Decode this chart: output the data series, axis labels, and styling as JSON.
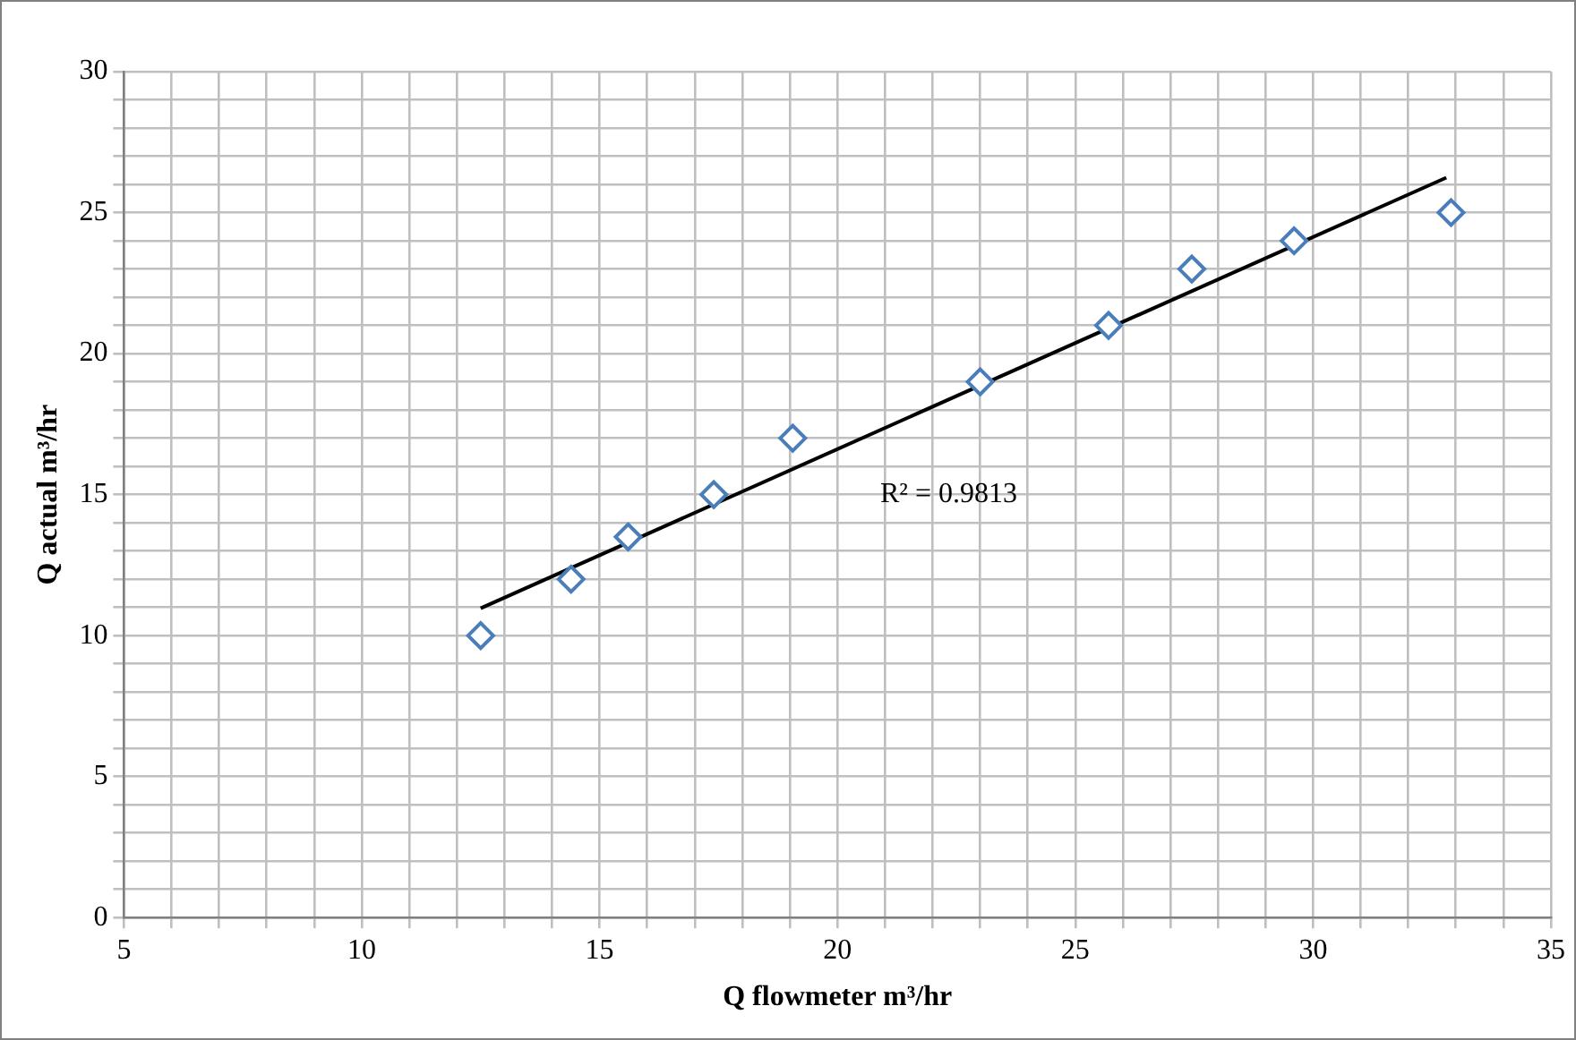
{
  "chart_data": {
    "type": "scatter",
    "xlabel": "Q flowmeter m³/hr",
    "ylabel": "Q actual m³/hr",
    "x": [
      12.5,
      14.4,
      15.6,
      17.4,
      19.06,
      23.0,
      25.7,
      27.45,
      29.6,
      32.9
    ],
    "series": [
      {
        "color": "#4a7ebb",
        "marker": "diamond",
        "values": [
          10,
          12,
          13.5,
          15,
          17,
          19,
          21,
          23,
          24,
          25
        ]
      },
      {
        "type": "line",
        "color": "#000000",
        "marker": "none",
        "x": [
          12.5,
          32.8
        ],
        "values": [
          10.97,
          26.24
        ]
      }
    ],
    "annotations": [
      "R² = 0.9813"
    ],
    "xlim": [
      5,
      35
    ],
    "ylim": [
      0,
      30
    ],
    "xticks": [
      5,
      {
        "value": 6,
        "label": null
      },
      {
        "value": 7,
        "label": null
      },
      {
        "value": 8,
        "label": null
      },
      {
        "value": 9,
        "label": null
      },
      10,
      {
        "value": 11,
        "label": null
      },
      {
        "value": 12,
        "label": null
      },
      {
        "value": 13,
        "label": null
      },
      {
        "value": 14,
        "label": null
      },
      15,
      {
        "value": 16,
        "label": null
      },
      {
        "value": 17,
        "label": null
      },
      {
        "value": 18,
        "label": null
      },
      {
        "value": 19,
        "label": null
      },
      20,
      {
        "value": 21,
        "label": null
      },
      {
        "value": 22,
        "label": null
      },
      {
        "value": 23,
        "label": null
      },
      {
        "value": 24,
        "label": null
      },
      25,
      {
        "value": 26,
        "label": null
      },
      {
        "value": 27,
        "label": null
      },
      {
        "value": 28,
        "label": null
      },
      {
        "value": 29,
        "label": null
      },
      30,
      {
        "value": 31,
        "label": null
      },
      {
        "value": 32,
        "label": null
      },
      {
        "value": 33,
        "label": null
      },
      {
        "value": 34,
        "label": null
      },
      35
    ],
    "yticks": [
      0,
      {
        "value": 1,
        "label": null
      },
      {
        "value": 2,
        "label": null
      },
      {
        "value": 3,
        "label": null
      },
      {
        "value": 4,
        "label": null
      },
      5,
      {
        "value": 6,
        "label": null
      },
      {
        "value": 7,
        "label": null
      },
      {
        "value": 8,
        "label": null
      },
      {
        "value": 9,
        "label": null
      },
      10,
      {
        "value": 11,
        "label": null
      },
      {
        "value": 12,
        "label": null
      },
      {
        "value": 13,
        "label": null
      },
      {
        "value": 14,
        "label": null
      },
      15,
      {
        "value": 16,
        "label": null
      },
      {
        "value": 17,
        "label": null
      },
      {
        "value": 18,
        "label": null
      },
      {
        "value": 19,
        "label": null
      },
      20,
      {
        "value": 21,
        "label": null
      },
      {
        "value": 22,
        "label": null
      },
      {
        "value": 23,
        "label": null
      },
      {
        "value": 24,
        "label": null
      },
      25,
      {
        "value": 26,
        "label": null
      },
      {
        "value": 27,
        "label": null
      },
      {
        "value": 28,
        "label": null
      },
      {
        "value": 29,
        "label": null
      },
      30
    ],
    "grid": true,
    "legend": false
  }
}
